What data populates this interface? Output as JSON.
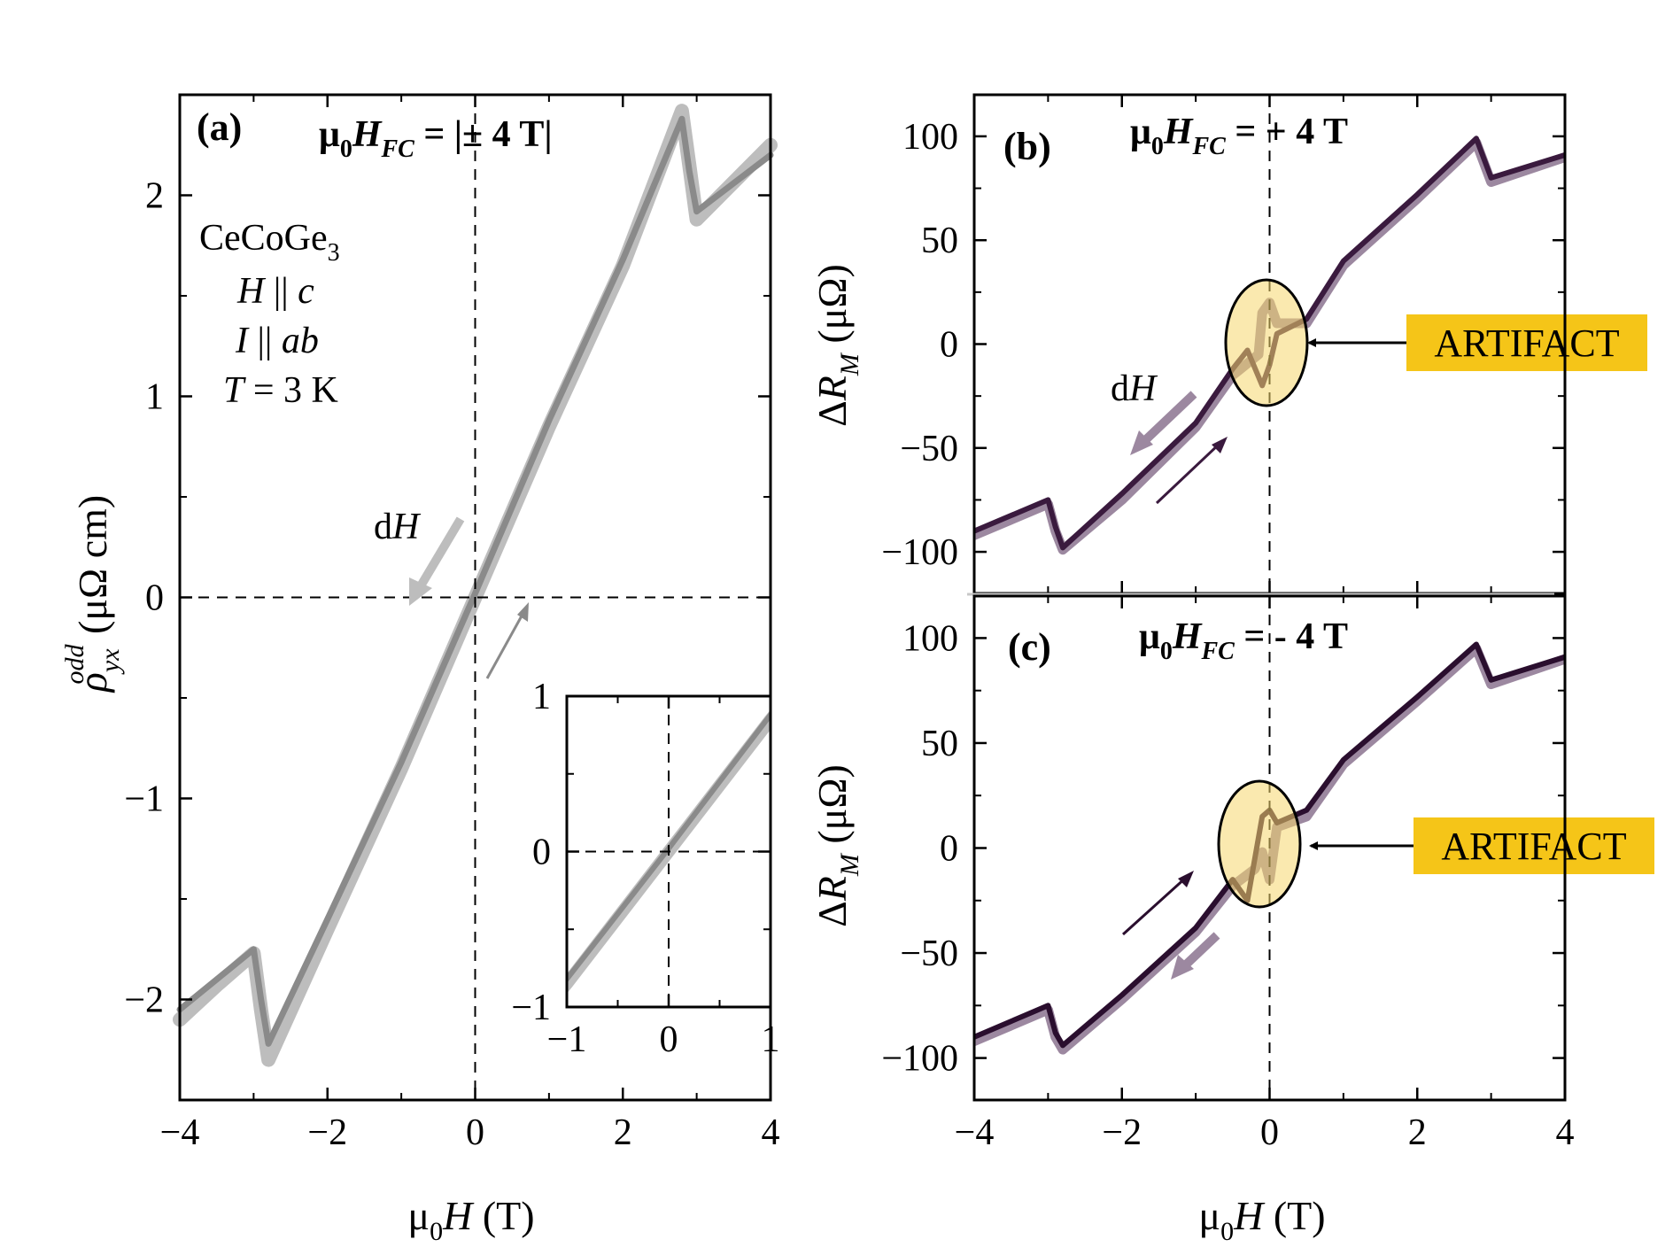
{
  "chart_data": [
    {
      "panel": "a",
      "type": "line",
      "panel_label": "(a)",
      "title_prefix": "μ",
      "title_sub": "0",
      "title_var": "H",
      "title_var_sub": "FC",
      "title_suffix": " = |± 4 T|",
      "sample": "CeCoGe",
      "sample_sub": "3",
      "conditions": [
        {
          "var": "H",
          "rel": " || ",
          "val": "c"
        },
        {
          "var": "I",
          "rel": " || ",
          "val": "ab"
        },
        {
          "var": "T",
          "rel": " = ",
          "val": "3 K"
        }
      ],
      "dH_label_d": "d",
      "dH_label_H": "H",
      "xlabel_prefix": "μ",
      "xlabel_sub": "0",
      "xlabel_var": "H",
      "xlabel_unit": " (T)",
      "ylabel_var": "ρ",
      "ylabel_sub": "yx",
      "ylabel_sup": "odd",
      "ylabel_unit": " (μΩ cm)",
      "xlim": [
        -4,
        4
      ],
      "ylim": [
        -2.5,
        2.5
      ],
      "xticks": [
        -4,
        -2,
        0,
        2,
        4
      ],
      "xtick_labels": [
        "−4",
        "−2",
        "0",
        "2",
        "4"
      ],
      "yticks": [
        -2,
        -1,
        0,
        1,
        2
      ],
      "ytick_labels": [
        "−2",
        "−1",
        "0",
        "1",
        "2"
      ],
      "series": [
        {
          "name": "sweep down",
          "color": "#bdbdbd",
          "x": [
            -4.0,
            -3.5,
            -3.0,
            -2.9,
            -2.8,
            -2.0,
            -1.0,
            0.0,
            1.0,
            2.0,
            2.8,
            2.9,
            3.0,
            4.0
          ],
          "y": [
            -2.1,
            -1.93,
            -1.77,
            -2.05,
            -2.3,
            -1.65,
            -0.85,
            0.0,
            0.85,
            1.65,
            2.42,
            2.15,
            1.88,
            2.25
          ]
        },
        {
          "name": "sweep up",
          "color": "#8a8a8a",
          "x": [
            -4.0,
            -3.5,
            -3.0,
            -2.9,
            -2.8,
            -2.0,
            -1.0,
            0.0,
            1.0,
            2.0,
            2.8,
            2.9,
            3.0,
            4.0
          ],
          "y": [
            -2.05,
            -1.9,
            -1.75,
            -2.0,
            -2.22,
            -1.6,
            -0.82,
            0.02,
            0.88,
            1.68,
            2.38,
            2.12,
            1.92,
            2.2
          ]
        }
      ],
      "inset": {
        "xlim": [
          -1,
          1
        ],
        "ylim": [
          -1,
          1
        ],
        "xticks": [
          -1,
          0,
          1
        ],
        "xtick_labels": [
          "−1",
          "0",
          "1"
        ],
        "yticks": [
          -1,
          0,
          1
        ],
        "ytick_labels": [
          "−1",
          "0",
          "1"
        ]
      }
    },
    {
      "panel": "b",
      "type": "line",
      "panel_label": "(b)",
      "title_prefix": "μ",
      "title_sub": "0",
      "title_var": "H",
      "title_var_sub": "FC",
      "title_suffix": " = + 4 T",
      "annotation": "ARTIFACT",
      "dH_label_d": "d",
      "dH_label_H": "H",
      "ylabel_prefix": "Δ",
      "ylabel_var": "R",
      "ylabel_sub": "M",
      "ylabel_unit": " (μΩ)",
      "xlim": [
        -4,
        4
      ],
      "ylim": [
        -120,
        120
      ],
      "yticks": [
        -100,
        -50,
        0,
        50,
        100
      ],
      "ytick_labels": [
        "−100",
        "−50",
        "0",
        "50",
        "100"
      ],
      "series": [
        {
          "name": "sweep down",
          "color": "#9c88a0",
          "x": [
            -4.0,
            -3.0,
            -2.9,
            -2.8,
            -2.0,
            -1.0,
            -0.5,
            -0.15,
            -0.1,
            0.0,
            0.1,
            0.5,
            1.0,
            2.0,
            2.8,
            3.0,
            4.0
          ],
          "y": [
            -92,
            -77,
            -90,
            -99,
            -75,
            -40,
            -15,
            -5,
            15,
            20,
            10,
            10,
            38,
            70,
            97,
            78,
            90
          ]
        },
        {
          "name": "sweep up",
          "color": "#3a1a3e",
          "x": [
            -4.0,
            -3.0,
            -2.9,
            -2.8,
            -2.0,
            -1.0,
            -0.5,
            -0.3,
            -0.1,
            0.0,
            0.1,
            0.5,
            1.0,
            2.0,
            2.8,
            3.0,
            4.0
          ],
          "y": [
            -90,
            -75,
            -88,
            -98,
            -72,
            -38,
            -12,
            -3,
            -20,
            -10,
            5,
            12,
            40,
            72,
            99,
            80,
            91
          ]
        }
      ]
    },
    {
      "panel": "c",
      "type": "line",
      "panel_label": "(c)",
      "title_prefix": "μ",
      "title_sub": "0",
      "title_var": "H",
      "title_var_sub": "FC",
      "title_suffix": " = - 4 T",
      "annotation": "ARTIFACT",
      "xlabel_prefix": "μ",
      "xlabel_sub": "0",
      "xlabel_var": "H",
      "xlabel_unit": " (T)",
      "ylabel_prefix": "Δ",
      "ylabel_var": "R",
      "ylabel_sub": "M",
      "ylabel_unit": " (μΩ)",
      "xlim": [
        -4,
        4
      ],
      "ylim": [
        -120,
        120
      ],
      "xticks": [
        -4,
        -2,
        0,
        2,
        4
      ],
      "xtick_labels": [
        "−4",
        "−2",
        "0",
        "2",
        "4"
      ],
      "yticks": [
        -100,
        -50,
        0,
        50,
        100
      ],
      "ytick_labels": [
        "−100",
        "−50",
        "0",
        "50",
        "100"
      ],
      "series": [
        {
          "name": "sweep down",
          "color": "#9c88a0",
          "x": [
            -4.0,
            -3.0,
            -2.9,
            -2.8,
            -2.0,
            -1.0,
            -0.5,
            -0.2,
            -0.1,
            0.0,
            0.1,
            0.5,
            1.0,
            2.0,
            2.8,
            3.0,
            4.0
          ],
          "y": [
            -92,
            -77,
            -90,
            -96,
            -72,
            -40,
            -18,
            -10,
            -2,
            -15,
            10,
            15,
            40,
            70,
            95,
            78,
            90
          ]
        },
        {
          "name": "sweep up",
          "color": "#2a0e2e",
          "x": [
            -4.0,
            -3.0,
            -2.9,
            -2.8,
            -2.0,
            -1.0,
            -0.5,
            -0.3,
            -0.1,
            0.0,
            0.1,
            0.5,
            1.0,
            2.0,
            2.8,
            3.0,
            4.0
          ],
          "y": [
            -90,
            -75,
            -88,
            -94,
            -70,
            -38,
            -15,
            -25,
            15,
            18,
            12,
            18,
            42,
            72,
            97,
            80,
            91
          ]
        }
      ]
    }
  ]
}
